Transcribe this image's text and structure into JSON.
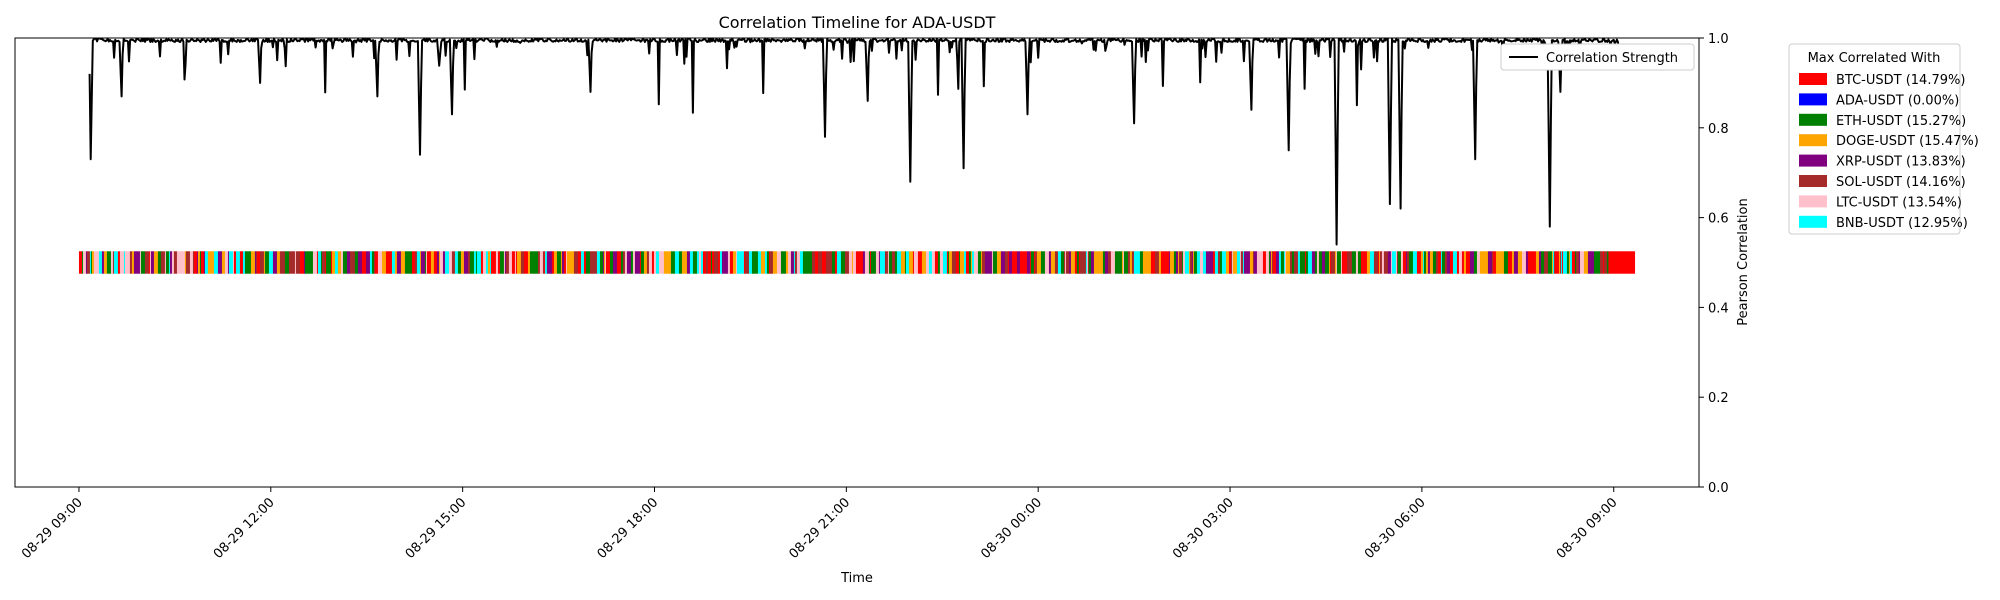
{
  "chart_data": {
    "type": "line",
    "title": "Correlation Timeline for ADA-USDT",
    "xlabel": "Time",
    "ylabel": "Pearson Correlation",
    "ylim": [
      0,
      1
    ],
    "yticks": [
      "0.0",
      "0.2",
      "0.4",
      "0.6",
      "0.8",
      "1.0"
    ],
    "xticks": [
      "08-29 09:00",
      "08-29 12:00",
      "08-29 15:00",
      "08-29 18:00",
      "08-29 21:00",
      "08-30 00:00",
      "08-30 03:00",
      "08-30 06:00",
      "08-30 09:00"
    ],
    "x_range": [
      "08-29 08:00",
      "08-30 10:20"
    ],
    "grid": false,
    "line_series": {
      "name": "Correlation Strength",
      "color": "#000000",
      "start": "08-29 09:10",
      "end": "08-30 09:05",
      "baseline": 0.995,
      "dips": [
        {
          "t": "08-29 09:11",
          "value": 0.73
        },
        {
          "t": "08-29 09:40",
          "value": 0.87
        },
        {
          "t": "08-29 10:40",
          "value": 0.94
        },
        {
          "t": "08-29 11:50",
          "value": 0.9
        },
        {
          "t": "08-29 13:40",
          "value": 0.87
        },
        {
          "t": "08-29 14:20",
          "value": 0.74
        },
        {
          "t": "08-29 14:50",
          "value": 0.83
        },
        {
          "t": "08-29 17:00",
          "value": 0.88
        },
        {
          "t": "08-29 20:40",
          "value": 0.78
        },
        {
          "t": "08-29 21:20",
          "value": 0.86
        },
        {
          "t": "08-29 22:00",
          "value": 0.68
        },
        {
          "t": "08-29 22:50",
          "value": 0.71
        },
        {
          "t": "08-29 23:50",
          "value": 0.83
        },
        {
          "t": "08-30 01:30",
          "value": 0.81
        },
        {
          "t": "08-30 03:20",
          "value": 0.84
        },
        {
          "t": "08-30 03:55",
          "value": 0.75
        },
        {
          "t": "08-30 04:40",
          "value": 0.54
        },
        {
          "t": "08-30 05:30",
          "value": 0.63
        },
        {
          "t": "08-30 05:40",
          "value": 0.62
        },
        {
          "t": "08-30 06:50",
          "value": 0.73
        },
        {
          "t": "08-30 08:00",
          "value": 0.58
        },
        {
          "t": "08-30 08:10",
          "value": 0.88
        }
      ]
    },
    "band": {
      "y_range": [
        0.475,
        0.525
      ],
      "start": "08-29 09:00",
      "end": "08-30 09:20",
      "end_block_pair": "BTC-USDT",
      "end_block_start": "08-30 08:55"
    },
    "legend_line_position": "top-right",
    "legend_pairs": {
      "title": "Max Correlated With",
      "position": "outside right",
      "items": [
        {
          "pair": "BTC-USDT",
          "label": "BTC-USDT (14.79%)",
          "share": 14.79,
          "color": "#ff0000"
        },
        {
          "pair": "ADA-USDT",
          "label": "ADA-USDT (0.00%)",
          "share": 0.0,
          "color": "#0000ff"
        },
        {
          "pair": "ETH-USDT",
          "label": "ETH-USDT (15.27%)",
          "share": 15.27,
          "color": "#008000"
        },
        {
          "pair": "DOGE-USDT",
          "label": "DOGE-USDT (15.47%)",
          "share": 15.47,
          "color": "#ffa500"
        },
        {
          "pair": "XRP-USDT",
          "label": "XRP-USDT (13.83%)",
          "share": 13.83,
          "color": "#800080"
        },
        {
          "pair": "SOL-USDT",
          "label": "SOL-USDT (14.16%)",
          "share": 14.16,
          "color": "#a52a2a"
        },
        {
          "pair": "LTC-USDT",
          "label": "LTC-USDT (13.54%)",
          "share": 13.54,
          "color": "#ffc0cb"
        },
        {
          "pair": "BNB-USDT",
          "label": "BNB-USDT (12.95%)",
          "share": 12.95,
          "color": "#00ffff"
        }
      ]
    }
  }
}
